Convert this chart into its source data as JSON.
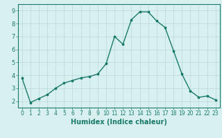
{
  "x": [
    0,
    1,
    2,
    3,
    4,
    5,
    6,
    7,
    8,
    9,
    10,
    11,
    12,
    13,
    14,
    15,
    16,
    17,
    18,
    19,
    20,
    21,
    22,
    23
  ],
  "y": [
    3.8,
    1.9,
    2.2,
    2.5,
    3.0,
    3.4,
    3.6,
    3.8,
    3.9,
    4.1,
    4.9,
    7.0,
    6.4,
    8.3,
    8.9,
    8.9,
    8.2,
    7.7,
    5.9,
    4.1,
    2.8,
    2.3,
    2.4,
    2.1
  ],
  "line_color": "#1a7a6a",
  "marker": "*",
  "marker_size": 2.5,
  "bg_color": "#d8f0f0",
  "grid_color": "#b8d8d8",
  "xlabel": "Humidex (Indice chaleur)",
  "ylim": [
    1.5,
    9.5
  ],
  "xlim": [
    -0.5,
    23.5
  ],
  "yticks": [
    2,
    3,
    4,
    5,
    6,
    7,
    8,
    9
  ],
  "xticks": [
    0,
    1,
    2,
    3,
    4,
    5,
    6,
    7,
    8,
    9,
    10,
    11,
    12,
    13,
    14,
    15,
    16,
    17,
    18,
    19,
    20,
    21,
    22,
    23
  ],
  "title_color": "#1a7a6a",
  "tick_fontsize": 5.5,
  "xlabel_fontsize": 7.0,
  "linewidth": 1.0
}
